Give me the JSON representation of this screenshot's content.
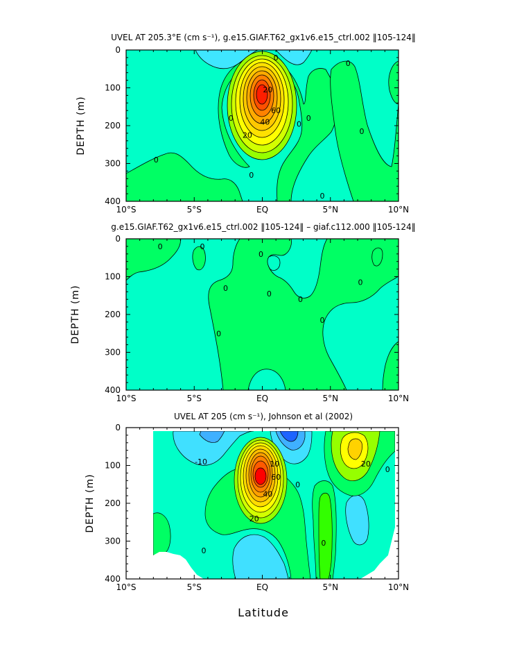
{
  "figure": {
    "xlabel_bottom": "Latitude",
    "colors": {
      "cyan": "#00ffff",
      "light_cyan": "#40e0ff",
      "sky": "#3fc8ff",
      "blue": "#1e64ff",
      "aqua_green": "#00ffc8",
      "green": "#00ff64",
      "bright_green": "#32ff00",
      "lime": "#96ff00",
      "yellow": "#ffff00",
      "gold": "#ffd200",
      "orange": "#ff9600",
      "red_orange": "#ff5a00",
      "red": "#ff0000"
    }
  },
  "chart_data": [
    {
      "type": "contour",
      "title": "UVEL AT 205.3°E (cm s⁻¹), g.e15.GIAF.T62_gx1v6.e15_ctrl.002 ‖105-124‖",
      "ylabel": "DEPTH (m)",
      "xlim": [
        -10,
        10
      ],
      "ylim": [
        400,
        0
      ],
      "xticks": [
        -10,
        -5,
        0,
        5,
        10
      ],
      "xticklabels": [
        "10°S",
        "5°S",
        "EQ",
        "5°N",
        "10°N"
      ],
      "yticks": [
        0,
        100,
        200,
        300,
        400
      ],
      "contour_labels": [
        {
          "lat": -2.3,
          "depth": 180,
          "text": "0"
        },
        {
          "lat": -7.8,
          "depth": 290,
          "text": "0"
        },
        {
          "lat": -0.8,
          "depth": 330,
          "text": "0"
        },
        {
          "lat": 2.7,
          "depth": 195,
          "text": "0"
        },
        {
          "lat": 3.4,
          "depth": 180,
          "text": "0"
        },
        {
          "lat": 4.4,
          "depth": 385,
          "text": "0"
        },
        {
          "lat": 6.3,
          "depth": 35,
          "text": "0"
        },
        {
          "lat": 7.3,
          "depth": 215,
          "text": "0"
        },
        {
          "lat": 0.4,
          "depth": 105,
          "text": "20"
        },
        {
          "lat": -1.1,
          "depth": 225,
          "text": "20"
        },
        {
          "lat": 1.0,
          "depth": 160,
          "text": "60"
        },
        {
          "lat": 0.2,
          "depth": 190,
          "text": "40"
        },
        {
          "lat": 1.0,
          "depth": 20,
          "text": "0"
        }
      ],
      "jet": {
        "lat": 0,
        "depth": 130,
        "max": 100
      }
    },
    {
      "type": "contour",
      "title": "g.e15.GIAF.T62_gx1v6.e15_ctrl.002 ‖105-124‖ – giaf.c112.000 ‖105-124‖",
      "ylabel": "DEPTH (m)",
      "xlim": [
        -10,
        10
      ],
      "ylim": [
        400,
        0
      ],
      "xticks": [
        -10,
        -5,
        0,
        5,
        10
      ],
      "xticklabels": [
        "10°S",
        "5°S",
        "EQ",
        "5°N",
        "10°N"
      ],
      "yticks": [
        0,
        100,
        200,
        300,
        400
      ],
      "contour_labels": [
        {
          "lat": -7.5,
          "depth": 20,
          "text": "0"
        },
        {
          "lat": -4.4,
          "depth": 20,
          "text": "0"
        },
        {
          "lat": -0.1,
          "depth": 40,
          "text": "0"
        },
        {
          "lat": -2.7,
          "depth": 130,
          "text": "0"
        },
        {
          "lat": -3.2,
          "depth": 250,
          "text": "0"
        },
        {
          "lat": 0.5,
          "depth": 145,
          "text": "0"
        },
        {
          "lat": 2.8,
          "depth": 160,
          "text": "0"
        },
        {
          "lat": 4.4,
          "depth": 215,
          "text": "0"
        },
        {
          "lat": 7.2,
          "depth": 115,
          "text": "0"
        }
      ]
    },
    {
      "type": "contour",
      "title": "UVEL AT 205 (cm s⁻¹), Johnson et al (2002)",
      "ylabel": "DEPTH (m)",
      "xlabel": "Latitude",
      "xlim": [
        -10,
        10
      ],
      "ylim": [
        400,
        0
      ],
      "xticks": [
        -10,
        -5,
        0,
        5,
        10
      ],
      "xticklabels": [
        "10°S",
        "5°S",
        "EQ",
        "5°N",
        "10°N"
      ],
      "yticks": [
        0,
        100,
        200,
        300,
        400
      ],
      "contour_labels": [
        {
          "lat": -4.5,
          "depth": 90,
          "text": "-10"
        },
        {
          "lat": 0.9,
          "depth": 95,
          "text": "10"
        },
        {
          "lat": 1.0,
          "depth": 130,
          "text": "60"
        },
        {
          "lat": 0.4,
          "depth": 175,
          "text": "40"
        },
        {
          "lat": -0.6,
          "depth": 240,
          "text": "20"
        },
        {
          "lat": 7.6,
          "depth": 95,
          "text": "20"
        },
        {
          "lat": -4.3,
          "depth": 325,
          "text": "0"
        },
        {
          "lat": 2.6,
          "depth": 150,
          "text": "0"
        },
        {
          "lat": 4.5,
          "depth": 305,
          "text": "0"
        },
        {
          "lat": 9.2,
          "depth": 110,
          "text": "0"
        }
      ],
      "jet": {
        "lat": 0,
        "depth": 130,
        "max": 100
      }
    }
  ]
}
